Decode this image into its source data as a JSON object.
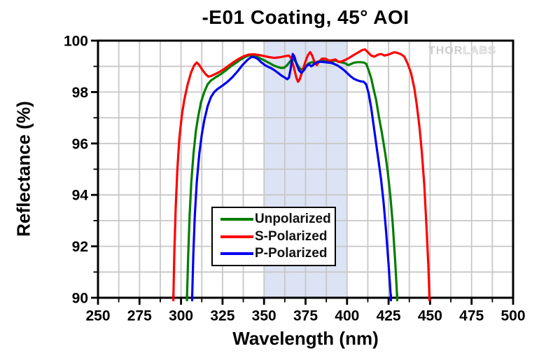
{
  "watermark": {
    "part1": "THOR",
    "part2": "LABS"
  },
  "colors": {
    "grid": "#c7c7c7",
    "axis": "#000000",
    "band": "#dce3f5",
    "background": "#ffffff"
  },
  "chart_data": {
    "type": "line",
    "title": "-E01 Coating, 45° AOI",
    "xlabel": "Wavelength (nm)",
    "ylabel": "Reflectance (%)",
    "xlim": [
      250,
      500
    ],
    "ylim": [
      90,
      100
    ],
    "x_major_ticks": [
      250,
      275,
      300,
      325,
      350,
      375,
      400,
      425,
      450,
      475,
      500
    ],
    "x_minor_step": 12.5,
    "y_major_ticks": [
      90,
      92,
      94,
      96,
      98,
      100
    ],
    "y_minor_step": 1,
    "grid": true,
    "shaded_band": {
      "x_start": 350,
      "x_end": 400
    },
    "legend_position": "bottom-center-inside",
    "series": [
      {
        "name": "Unpolarized",
        "color": "#007d00",
        "points": [
          [
            303.6,
            90
          ],
          [
            304.3,
            91.6
          ],
          [
            305.2,
            93.2
          ],
          [
            306.2,
            94.5
          ],
          [
            307.5,
            95.6
          ],
          [
            309,
            96.5
          ],
          [
            310.5,
            97.1
          ],
          [
            312,
            97.6
          ],
          [
            314,
            98.0
          ],
          [
            316,
            98.3
          ],
          [
            318,
            98.45
          ],
          [
            321,
            98.58
          ],
          [
            324,
            98.7
          ],
          [
            327,
            98.84
          ],
          [
            330,
            99.0
          ],
          [
            333,
            99.13
          ],
          [
            336,
            99.27
          ],
          [
            339,
            99.38
          ],
          [
            341.5,
            99.43
          ],
          [
            344,
            99.42
          ],
          [
            346,
            99.37
          ],
          [
            348,
            99.3
          ],
          [
            350,
            99.24
          ],
          [
            352,
            99.17
          ],
          [
            354,
            99.1
          ],
          [
            356,
            99.03
          ],
          [
            358,
            98.98
          ],
          [
            360,
            98.94
          ],
          [
            362,
            98.94
          ],
          [
            364,
            99.05
          ],
          [
            366,
            99.22
          ],
          [
            367.5,
            99.3
          ],
          [
            369,
            99.18
          ],
          [
            370.5,
            99.02
          ],
          [
            372,
            98.88
          ],
          [
            373.5,
            98.9
          ],
          [
            375,
            99.0
          ],
          [
            377,
            99.12
          ],
          [
            379,
            99.16
          ],
          [
            381,
            99.14
          ],
          [
            383,
            99.2
          ],
          [
            385,
            99.23
          ],
          [
            387,
            99.2
          ],
          [
            389,
            99.15
          ],
          [
            391,
            99.19
          ],
          [
            393,
            99.23
          ],
          [
            395,
            99.18
          ],
          [
            397,
            99.15
          ],
          [
            399,
            99.12
          ],
          [
            400.5,
            99.05
          ],
          [
            402,
            99.08
          ],
          [
            404,
            99.14
          ],
          [
            406,
            99.16
          ],
          [
            408,
            99.16
          ],
          [
            410,
            99.15
          ],
          [
            411.5,
            99.1
          ],
          [
            413,
            98.85
          ],
          [
            414.5,
            98.55
          ],
          [
            416,
            98.1
          ],
          [
            417.5,
            97.7
          ],
          [
            419,
            97.1
          ],
          [
            421,
            96.4
          ],
          [
            423,
            95.6
          ],
          [
            424.5,
            94.9
          ],
          [
            426,
            94.0
          ],
          [
            427.5,
            92.9
          ],
          [
            429,
            91.4
          ],
          [
            430.2,
            90
          ]
        ]
      },
      {
        "name": "S-Polarized",
        "color": "#fe0000",
        "points": [
          [
            295.4,
            90
          ],
          [
            296,
            91.8
          ],
          [
            296.8,
            93.5
          ],
          [
            297.8,
            95
          ],
          [
            299,
            96.2
          ],
          [
            300.5,
            97.1
          ],
          [
            302,
            97.7
          ],
          [
            304,
            98.3
          ],
          [
            306,
            98.75
          ],
          [
            308,
            99.05
          ],
          [
            309.5,
            99.15
          ],
          [
            311,
            99.05
          ],
          [
            313,
            98.85
          ],
          [
            315,
            98.68
          ],
          [
            316.5,
            98.6
          ],
          [
            318,
            98.62
          ],
          [
            320,
            98.68
          ],
          [
            323,
            98.78
          ],
          [
            326,
            98.9
          ],
          [
            329,
            99.04
          ],
          [
            332,
            99.18
          ],
          [
            335,
            99.3
          ],
          [
            338,
            99.4
          ],
          [
            341,
            99.46
          ],
          [
            344,
            99.47
          ],
          [
            347,
            99.44
          ],
          [
            350,
            99.4
          ],
          [
            353,
            99.36
          ],
          [
            356,
            99.33
          ],
          [
            359,
            99.35
          ],
          [
            361,
            99.37
          ],
          [
            363,
            99.4
          ],
          [
            365,
            99.42
          ],
          [
            366.5,
            99.3
          ],
          [
            368,
            98.95
          ],
          [
            369.5,
            98.55
          ],
          [
            370.5,
            98.4
          ],
          [
            371.5,
            98.5
          ],
          [
            373,
            98.8
          ],
          [
            375,
            99.2
          ],
          [
            376.5,
            99.45
          ],
          [
            377.8,
            99.55
          ],
          [
            379,
            99.42
          ],
          [
            380.5,
            99.15
          ],
          [
            381.8,
            99.05
          ],
          [
            383,
            99.18
          ],
          [
            385,
            99.3
          ],
          [
            387,
            99.3
          ],
          [
            389,
            99.22
          ],
          [
            391,
            99.24
          ],
          [
            393,
            99.27
          ],
          [
            395,
            99.17
          ],
          [
            397,
            99.2
          ],
          [
            399,
            99.25
          ],
          [
            401,
            99.32
          ],
          [
            403,
            99.4
          ],
          [
            405,
            99.48
          ],
          [
            407,
            99.55
          ],
          [
            409,
            99.63
          ],
          [
            410.8,
            99.66
          ],
          [
            412.5,
            99.55
          ],
          [
            414.5,
            99.42
          ],
          [
            416.5,
            99.38
          ],
          [
            418.5,
            99.45
          ],
          [
            420.5,
            99.48
          ],
          [
            422.5,
            99.42
          ],
          [
            424.5,
            99.45
          ],
          [
            426.5,
            99.5
          ],
          [
            428.5,
            99.55
          ],
          [
            430.5,
            99.52
          ],
          [
            432.5,
            99.47
          ],
          [
            434.5,
            99.38
          ],
          [
            436.5,
            99.1
          ],
          [
            438.5,
            98.75
          ],
          [
            440.5,
            98.15
          ],
          [
            442,
            97.5
          ],
          [
            443.5,
            96.7
          ],
          [
            445,
            95.7
          ],
          [
            446.5,
            94.4
          ],
          [
            447.8,
            92.8
          ],
          [
            449,
            91.2
          ],
          [
            449.6,
            90
          ]
        ]
      },
      {
        "name": "P-Polarized",
        "color": "#0000f0",
        "points": [
          [
            306.7,
            90
          ],
          [
            307.4,
            91.7
          ],
          [
            308.3,
            93.2
          ],
          [
            309.5,
            94.5
          ],
          [
            311,
            95.6
          ],
          [
            312.5,
            96.35
          ],
          [
            314,
            96.9
          ],
          [
            316,
            97.45
          ],
          [
            318,
            97.8
          ],
          [
            320,
            98.0
          ],
          [
            322,
            98.12
          ],
          [
            325,
            98.25
          ],
          [
            328,
            98.4
          ],
          [
            331,
            98.58
          ],
          [
            334,
            98.8
          ],
          [
            337,
            99.05
          ],
          [
            340,
            99.25
          ],
          [
            342.5,
            99.37
          ],
          [
            344.5,
            99.35
          ],
          [
            346.5,
            99.27
          ],
          [
            348.5,
            99.15
          ],
          [
            350.5,
            99.05
          ],
          [
            352.5,
            98.98
          ],
          [
            354.5,
            98.92
          ],
          [
            356.5,
            98.84
          ],
          [
            358.5,
            98.74
          ],
          [
            360.5,
            98.64
          ],
          [
            362.5,
            98.56
          ],
          [
            364,
            98.5
          ],
          [
            365,
            98.56
          ],
          [
            366,
            98.9
          ],
          [
            367.3,
            99.48
          ],
          [
            368.3,
            99.38
          ],
          [
            369.5,
            99.1
          ],
          [
            371,
            98.85
          ],
          [
            372.5,
            98.74
          ],
          [
            374,
            98.85
          ],
          [
            375.5,
            99.0
          ],
          [
            377,
            99.08
          ],
          [
            378.5,
            99.0
          ],
          [
            380,
            99.08
          ],
          [
            382,
            99.16
          ],
          [
            384,
            99.18
          ],
          [
            386,
            99.17
          ],
          [
            388,
            99.15
          ],
          [
            390,
            99.14
          ],
          [
            392,
            99.1
          ],
          [
            394,
            99.04
          ],
          [
            396,
            98.96
          ],
          [
            398,
            98.86
          ],
          [
            400,
            98.74
          ],
          [
            402,
            98.62
          ],
          [
            404,
            98.52
          ],
          [
            406,
            98.46
          ],
          [
            408,
            98.42
          ],
          [
            410,
            98.4
          ],
          [
            411.5,
            98.3
          ],
          [
            413,
            97.95
          ],
          [
            414.5,
            97.4
          ],
          [
            416,
            96.7
          ],
          [
            417.5,
            96.0
          ],
          [
            419,
            95.3
          ],
          [
            420.5,
            94.6
          ],
          [
            422,
            93.7
          ],
          [
            423.5,
            92.6
          ],
          [
            425,
            91.3
          ],
          [
            426.4,
            90
          ]
        ]
      }
    ]
  }
}
